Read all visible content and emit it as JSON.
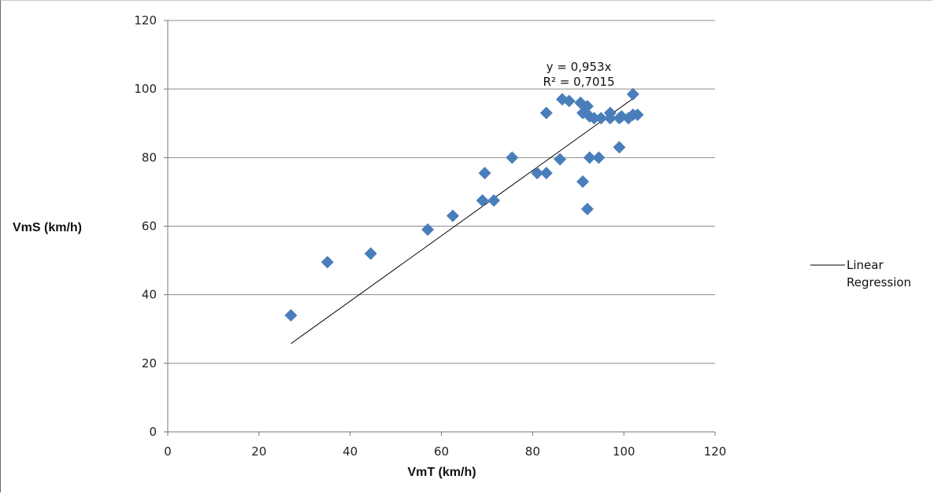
{
  "chart_data": {
    "type": "scatter",
    "xlabel": "VmT (km/h)",
    "ylabel": "VmS (km/h)",
    "xlim": [
      0,
      120
    ],
    "ylim": [
      0,
      120
    ],
    "x_ticks": [
      0,
      20,
      40,
      60,
      80,
      100,
      120
    ],
    "y_ticks": [
      0,
      20,
      40,
      60,
      80,
      100,
      120
    ],
    "grid": "horizontal",
    "legend_position": "right",
    "colors": {
      "points": "#4a7ebb",
      "trendline": "#000000",
      "grid": "#8c8c8c"
    },
    "series": [
      {
        "points": [
          [
            27,
            34
          ],
          [
            35,
            49.5
          ],
          [
            44.5,
            52
          ],
          [
            57,
            59
          ],
          [
            62.5,
            63
          ],
          [
            69.5,
            75.5
          ],
          [
            69,
            67.5
          ],
          [
            71.5,
            67.5
          ],
          [
            75.5,
            80
          ],
          [
            81,
            75.5
          ],
          [
            83,
            75.5
          ],
          [
            83,
            93
          ],
          [
            86,
            79.5
          ],
          [
            86.5,
            97
          ],
          [
            88,
            96.5
          ],
          [
            90.5,
            96
          ],
          [
            91,
            93
          ],
          [
            91,
            73
          ],
          [
            92,
            95
          ],
          [
            92,
            65
          ],
          [
            92.5,
            80
          ],
          [
            92.5,
            92
          ],
          [
            93.5,
            91.5
          ],
          [
            94.5,
            80
          ],
          [
            95,
            91.5
          ],
          [
            97,
            93
          ],
          [
            97,
            91.5
          ],
          [
            99,
            91.5
          ],
          [
            99.5,
            92
          ],
          [
            101,
            91.5
          ],
          [
            102,
            92.5
          ],
          [
            102,
            98.5
          ],
          [
            103,
            92.5
          ],
          [
            99,
            83
          ]
        ]
      }
    ],
    "trendline": {
      "type": "linear",
      "slope": 0.953,
      "x_range": [
        27,
        102
      ],
      "equation": "y = 0,953x",
      "r_squared": "R² = 0,7015",
      "legend_label_line1": "Linear",
      "legend_label_line2": "Regression"
    }
  }
}
